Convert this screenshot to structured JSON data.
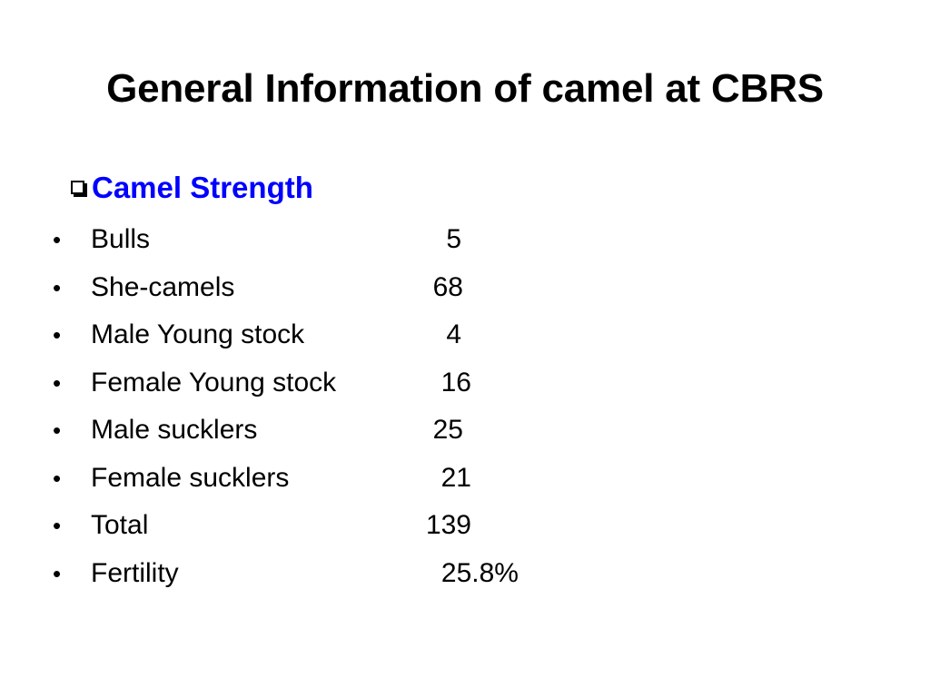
{
  "slide": {
    "title": "General Information of camel at CBRS",
    "section": {
      "heading": "Camel Strength",
      "heading_color": "#0000FF",
      "icon": "checkbox-icon"
    },
    "items": [
      {
        "label": "Bulls",
        "value": "5"
      },
      {
        "label": "She-camels",
        "value": "68"
      },
      {
        "label": "Male Young stock",
        "value": "4"
      },
      {
        "label": "Female Young stock",
        "value": "16"
      },
      {
        "label": "Male sucklers",
        "value": "25"
      },
      {
        "label": "Female sucklers",
        "value": "21"
      },
      {
        "label": "Total",
        "value": "139"
      },
      {
        "label": "Fertility",
        "value": "25.8%"
      }
    ],
    "bullet_glyph": "•"
  }
}
